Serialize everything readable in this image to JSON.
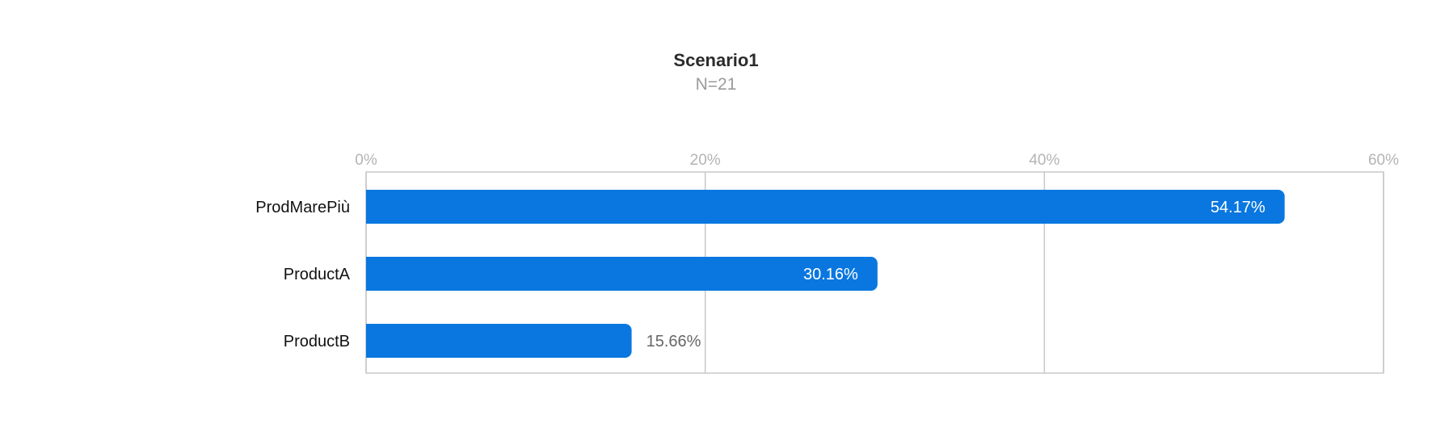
{
  "chart_data": {
    "type": "bar",
    "orientation": "horizontal",
    "title": "Scenario1",
    "subtitle": "N=21",
    "categories": [
      "ProdMarePiù",
      "ProductA",
      "ProductB"
    ],
    "values": [
      54.17,
      30.16,
      15.66
    ],
    "data_labels": [
      "54.17%",
      "30.16%",
      "15.66%"
    ],
    "x_ticks": [
      0,
      20,
      40,
      60
    ],
    "x_tick_labels": [
      "0%",
      "20%",
      "40%",
      "60%"
    ],
    "xlim": [
      0,
      60
    ],
    "xlabel": "",
    "ylabel": "",
    "grid": true,
    "legend": "none",
    "bar_color": "#0a77e0",
    "grid_color": "#c8c8c8"
  }
}
